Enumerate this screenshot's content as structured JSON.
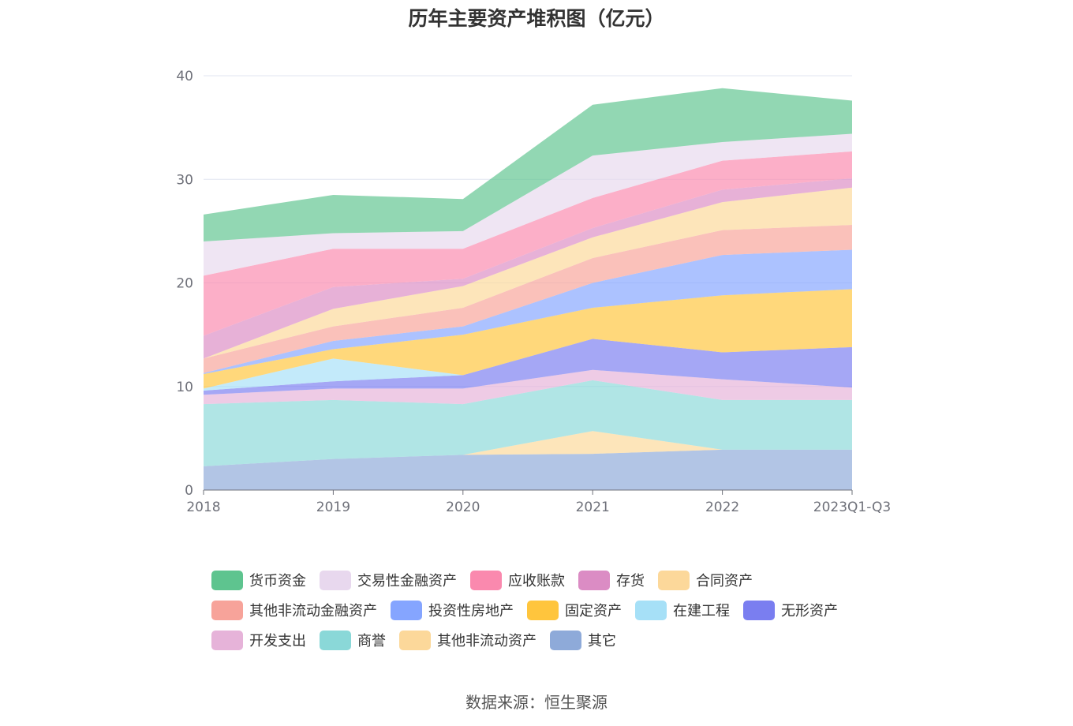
{
  "chart_data": {
    "type": "area",
    "stacked": true,
    "title": "历年主要资产堆积图（亿元）",
    "source": "数据来源：恒生聚源",
    "categories": [
      "2018",
      "2019",
      "2020",
      "2021",
      "2022",
      "2023Q1-Q3"
    ],
    "ylim": [
      0,
      40
    ],
    "yticks": [
      0,
      10,
      20,
      30,
      40
    ],
    "xlabel": "",
    "ylabel": "",
    "grid": true,
    "legend_position": "bottom",
    "series": [
      {
        "name": "其它",
        "color": "#8eaad9",
        "values": [
          2.3,
          3.0,
          3.4,
          3.5,
          3.9,
          3.9
        ]
      },
      {
        "name": "其他非流动资产",
        "color": "#fcd89a",
        "values": [
          0.0,
          0.0,
          0.0,
          2.2,
          0.0,
          0.0
        ]
      },
      {
        "name": "商誉",
        "color": "#8ad8d8",
        "values": [
          6.0,
          5.7,
          4.9,
          4.9,
          4.8,
          4.8
        ]
      },
      {
        "name": "开发支出",
        "color": "#e6b3d9",
        "values": [
          0.9,
          1.1,
          1.5,
          1.0,
          2.0,
          1.2
        ]
      },
      {
        "name": "无形资产",
        "color": "#7a7ef0",
        "values": [
          0.4,
          0.7,
          1.3,
          3.0,
          2.6,
          3.9
        ]
      },
      {
        "name": "在建工程",
        "color": "#a6e0f7",
        "values": [
          0.2,
          2.2,
          0.0,
          0.0,
          0.0,
          0.0
        ]
      },
      {
        "name": "固定资产",
        "color": "#ffc53d",
        "values": [
          1.4,
          0.9,
          3.9,
          3.0,
          5.5,
          5.6
        ]
      },
      {
        "name": "投资性房地产",
        "color": "#85a5ff",
        "values": [
          0.1,
          0.8,
          0.8,
          2.4,
          3.9,
          3.8
        ]
      },
      {
        "name": "其他非流动金融资产",
        "color": "#f7a39a",
        "values": [
          1.4,
          1.4,
          1.8,
          2.4,
          2.4,
          2.4
        ]
      },
      {
        "name": "合同资产",
        "color": "#fcd89a",
        "values": [
          0.0,
          1.7,
          2.1,
          2.0,
          2.7,
          3.6
        ]
      },
      {
        "name": "存货",
        "color": "#db8cc4",
        "values": [
          2.2,
          2.1,
          0.7,
          0.9,
          1.2,
          0.9
        ]
      },
      {
        "name": "应收账款",
        "color": "#fa89ae",
        "values": [
          5.8,
          3.7,
          2.9,
          2.9,
          2.8,
          2.6
        ]
      },
      {
        "name": "交易性金融资产",
        "color": "#e8d8ee",
        "values": [
          3.3,
          1.5,
          1.7,
          4.1,
          1.8,
          1.7
        ]
      },
      {
        "name": "货币资金",
        "color": "#5ec48f",
        "values": [
          2.6,
          3.7,
          3.1,
          4.9,
          5.2,
          3.2
        ]
      }
    ],
    "legend_order": [
      "货币资金",
      "交易性金融资产",
      "应收账款",
      "存货",
      "合同资产",
      "其他非流动金融资产",
      "投资性房地产",
      "固定资产",
      "在建工程",
      "无形资产",
      "开发支出",
      "商誉",
      "其他非流动资产",
      "其它"
    ]
  }
}
